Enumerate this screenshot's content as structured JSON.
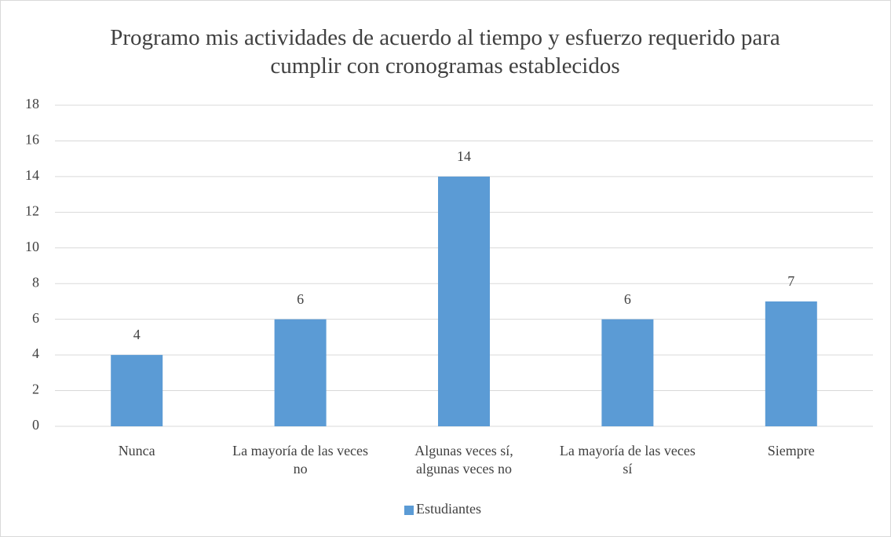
{
  "chart_data": {
    "type": "bar",
    "title": "Programo mis actividades de acuerdo al tiempo y esfuerzo requerido para cumplir con cronogramas establecidos",
    "categories": [
      "Nunca",
      "La mayoría de las veces no",
      "Algunas veces sí, algunas veces no",
      "La mayoría de las veces sí",
      "Siempre"
    ],
    "series": [
      {
        "name": "Estudiantes",
        "color": "#5b9bd5",
        "values": [
          4,
          6,
          14,
          6,
          7
        ]
      }
    ],
    "ylim": [
      0,
      18
    ],
    "yticks": [
      0,
      2,
      4,
      6,
      8,
      10,
      12,
      14,
      16,
      18
    ],
    "grid": true,
    "legend": "bottom"
  }
}
